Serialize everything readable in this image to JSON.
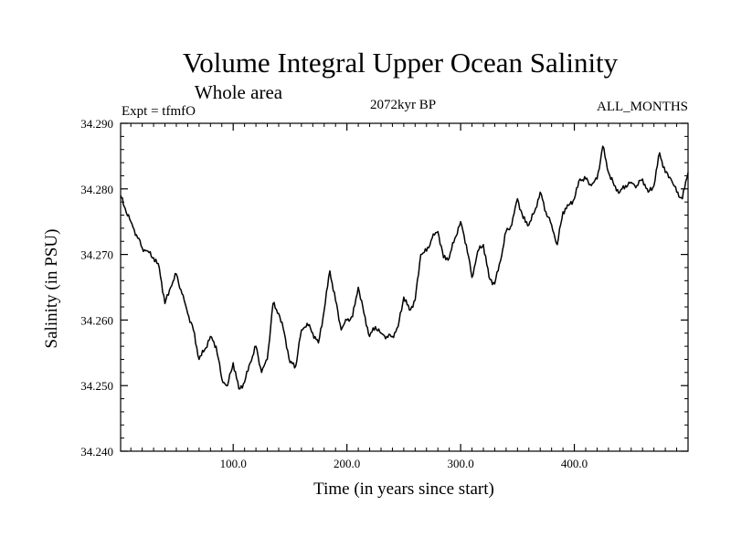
{
  "chart_data": {
    "type": "line",
    "title": "Volume Integral Upper Ocean Salinity",
    "subtitle": "Whole area",
    "experiment": "Expt = tfmfO",
    "period": "2072kyr BP",
    "months": "ALL_MONTHS",
    "xlabel": "Time (in years since start)",
    "ylabel": "Salinity (in PSU)",
    "xlim": [
      1,
      500
    ],
    "ylim": [
      34.24,
      34.29
    ],
    "x_ticks": [
      100,
      200,
      300,
      400
    ],
    "x_tick_labels": [
      "100.0",
      "200.0",
      "300.0",
      "400.0"
    ],
    "y_ticks": [
      34.24,
      34.25,
      34.26,
      34.27,
      34.28,
      34.29
    ],
    "y_tick_labels": [
      "34.240",
      "34.250",
      "34.260",
      "34.270",
      "34.280",
      "34.290"
    ],
    "grid": false,
    "line_color": "#000000",
    "series": [
      {
        "name": "Salinity",
        "x": [
          1,
          5,
          10,
          15,
          20,
          25,
          30,
          35,
          40,
          45,
          50,
          55,
          60,
          65,
          70,
          75,
          80,
          85,
          90,
          95,
          100,
          105,
          110,
          115,
          120,
          125,
          130,
          135,
          140,
          145,
          150,
          155,
          160,
          165,
          170,
          175,
          180,
          185,
          190,
          195,
          200,
          205,
          210,
          215,
          220,
          225,
          230,
          235,
          240,
          245,
          250,
          255,
          260,
          265,
          270,
          275,
          280,
          285,
          290,
          295,
          300,
          305,
          310,
          315,
          320,
          325,
          330,
          335,
          340,
          345,
          350,
          355,
          360,
          365,
          370,
          375,
          380,
          385,
          390,
          395,
          400,
          405,
          410,
          415,
          420,
          425,
          430,
          435,
          440,
          445,
          450,
          455,
          460,
          465,
          470,
          475,
          480,
          485,
          490,
          495,
          500
        ],
        "values": [
          34.279,
          34.277,
          34.275,
          34.273,
          34.271,
          34.2705,
          34.2695,
          34.268,
          34.2625,
          34.265,
          34.267,
          34.264,
          34.261,
          34.2585,
          34.254,
          34.2555,
          34.2575,
          34.256,
          34.251,
          34.25,
          34.2535,
          34.2495,
          34.2505,
          34.2535,
          34.256,
          34.252,
          34.254,
          34.2625,
          34.261,
          34.258,
          34.2535,
          34.253,
          34.2585,
          34.2595,
          34.258,
          34.2565,
          34.2615,
          34.2675,
          34.263,
          34.2585,
          34.26,
          34.2605,
          34.265,
          34.261,
          34.2575,
          34.259,
          34.258,
          34.2575,
          34.2575,
          34.259,
          34.2635,
          34.2615,
          34.263,
          34.27,
          34.2705,
          34.2725,
          34.2735,
          34.2695,
          34.2695,
          34.2725,
          34.275,
          34.2715,
          34.2665,
          34.2705,
          34.2715,
          34.2665,
          34.2655,
          34.269,
          34.2735,
          34.2745,
          34.2785,
          34.2755,
          34.2745,
          34.2765,
          34.2795,
          34.2765,
          34.2745,
          34.2715,
          34.2765,
          34.2775,
          34.2785,
          34.2815,
          34.2815,
          34.2805,
          34.2815,
          34.2865,
          34.2825,
          34.2805,
          34.2795,
          34.2805,
          34.281,
          34.2805,
          34.2815,
          34.2795,
          34.2805,
          34.2855,
          34.2825,
          34.2815,
          34.2795,
          34.2785,
          34.2825
        ]
      }
    ]
  }
}
